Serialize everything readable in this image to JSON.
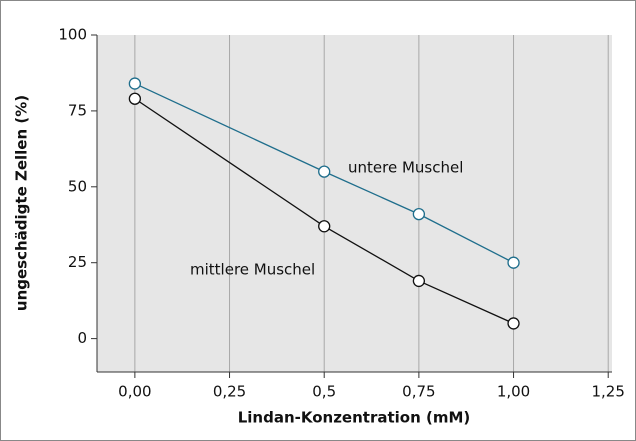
{
  "chart_data": {
    "type": "line",
    "xlabel": "Lindan-Konzentration (mM)",
    "ylabel": "ungeschädigte Zellen (%)",
    "xlim": [
      -0.1,
      1.26
    ],
    "ylim": [
      -11,
      100
    ],
    "xticks": [
      {
        "value": 0,
        "label": "0,00"
      },
      {
        "value": 0.25,
        "label": "0,25"
      },
      {
        "value": 0.5,
        "label": "0,5"
      },
      {
        "value": 0.75,
        "label": "0,75"
      },
      {
        "value": 1,
        "label": "1,00"
      },
      {
        "value": 1.25,
        "label": "1,25"
      }
    ],
    "yticks": [
      0,
      25,
      50,
      75,
      100
    ],
    "grid": true,
    "series": [
      {
        "name": "untere Muschel",
        "color": "#1f6e8c",
        "x": [
          0,
          0.5,
          0.75,
          1
        ],
        "values": [
          84,
          55,
          41,
          25
        ]
      },
      {
        "name": "mittlere Muschel",
        "color": "#111111",
        "x": [
          0,
          0.5,
          0.75,
          1
        ],
        "values": [
          79,
          37,
          19,
          5
        ]
      }
    ]
  }
}
